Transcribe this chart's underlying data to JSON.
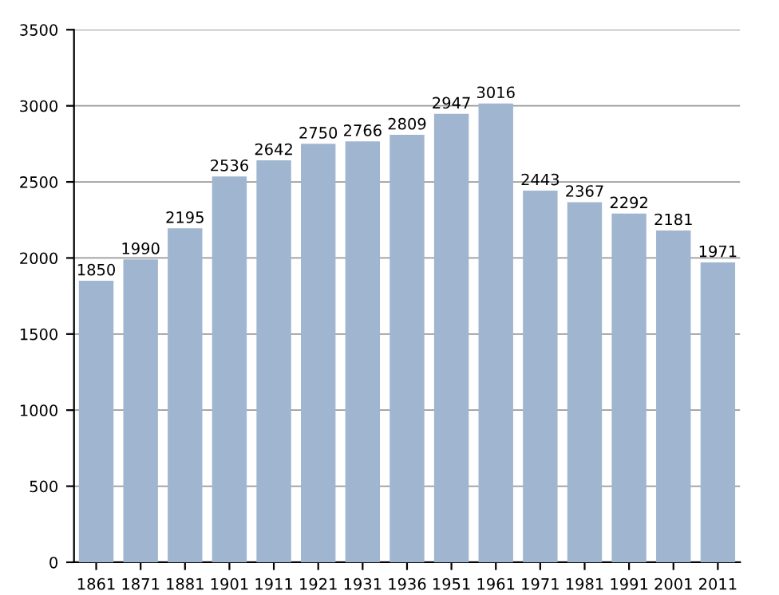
{
  "chart_data": {
    "type": "bar",
    "categories": [
      "1861",
      "1871",
      "1881",
      "1901",
      "1911",
      "1921",
      "1931",
      "1936",
      "1951",
      "1961",
      "1971",
      "1981",
      "1991",
      "2001",
      "2011"
    ],
    "values": [
      1850,
      1990,
      2195,
      2536,
      2642,
      2750,
      2766,
      2809,
      2947,
      3016,
      2443,
      2367,
      2292,
      2181,
      1971
    ],
    "color": "#a0b5cf",
    "ylim": [
      0,
      3500
    ],
    "yticks": [
      0,
      500,
      1000,
      1500,
      2000,
      2500,
      3000,
      3500
    ],
    "grid": "y",
    "data_labels": true
  }
}
